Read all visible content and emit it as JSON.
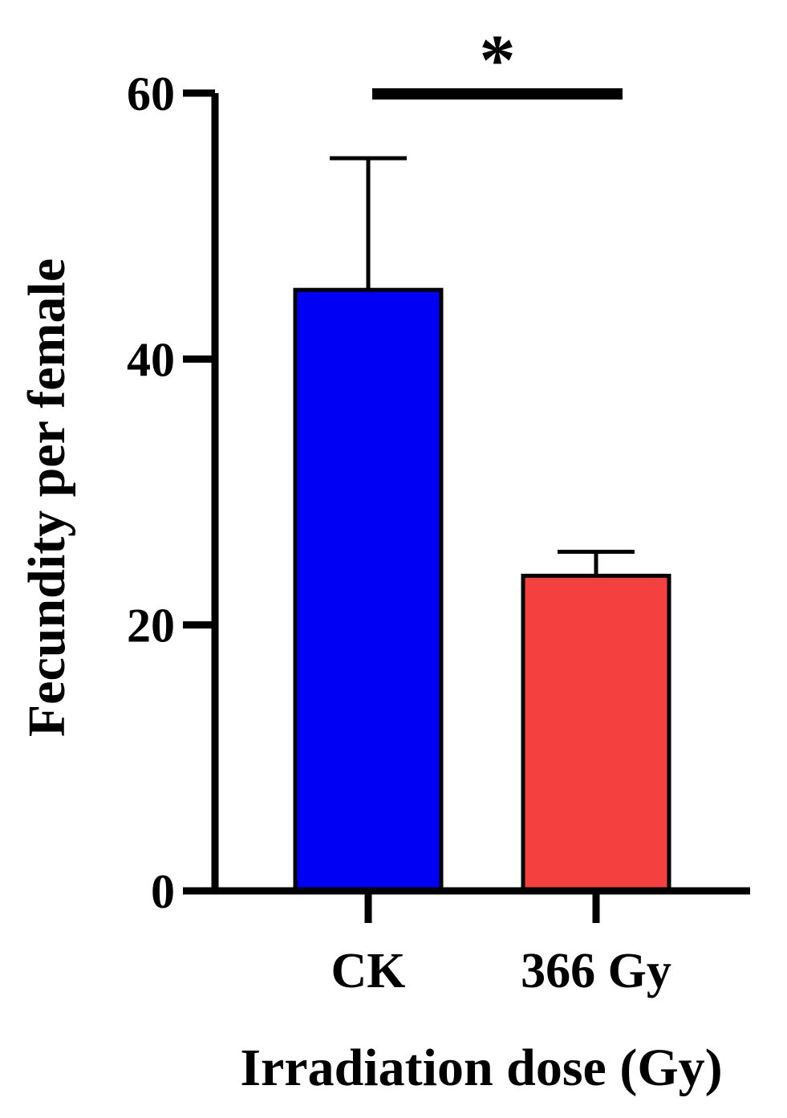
{
  "chart_data": {
    "type": "bar",
    "title": "",
    "xlabel": "Irradiation dose (Gy)",
    "ylabel": "Fecundity per female",
    "ylim": [
      0,
      60
    ],
    "yticks": [
      0,
      20,
      40,
      60
    ],
    "categories": [
      "CK",
      "366 Gy"
    ],
    "values": [
      45.2,
      23.7
    ],
    "errors": [
      9.9,
      1.8
    ],
    "colors": [
      "#0000f5",
      "#f54040"
    ],
    "significance": {
      "between": [
        "CK",
        "366 Gy"
      ],
      "label": "*"
    },
    "legend": "none",
    "grid": false
  }
}
